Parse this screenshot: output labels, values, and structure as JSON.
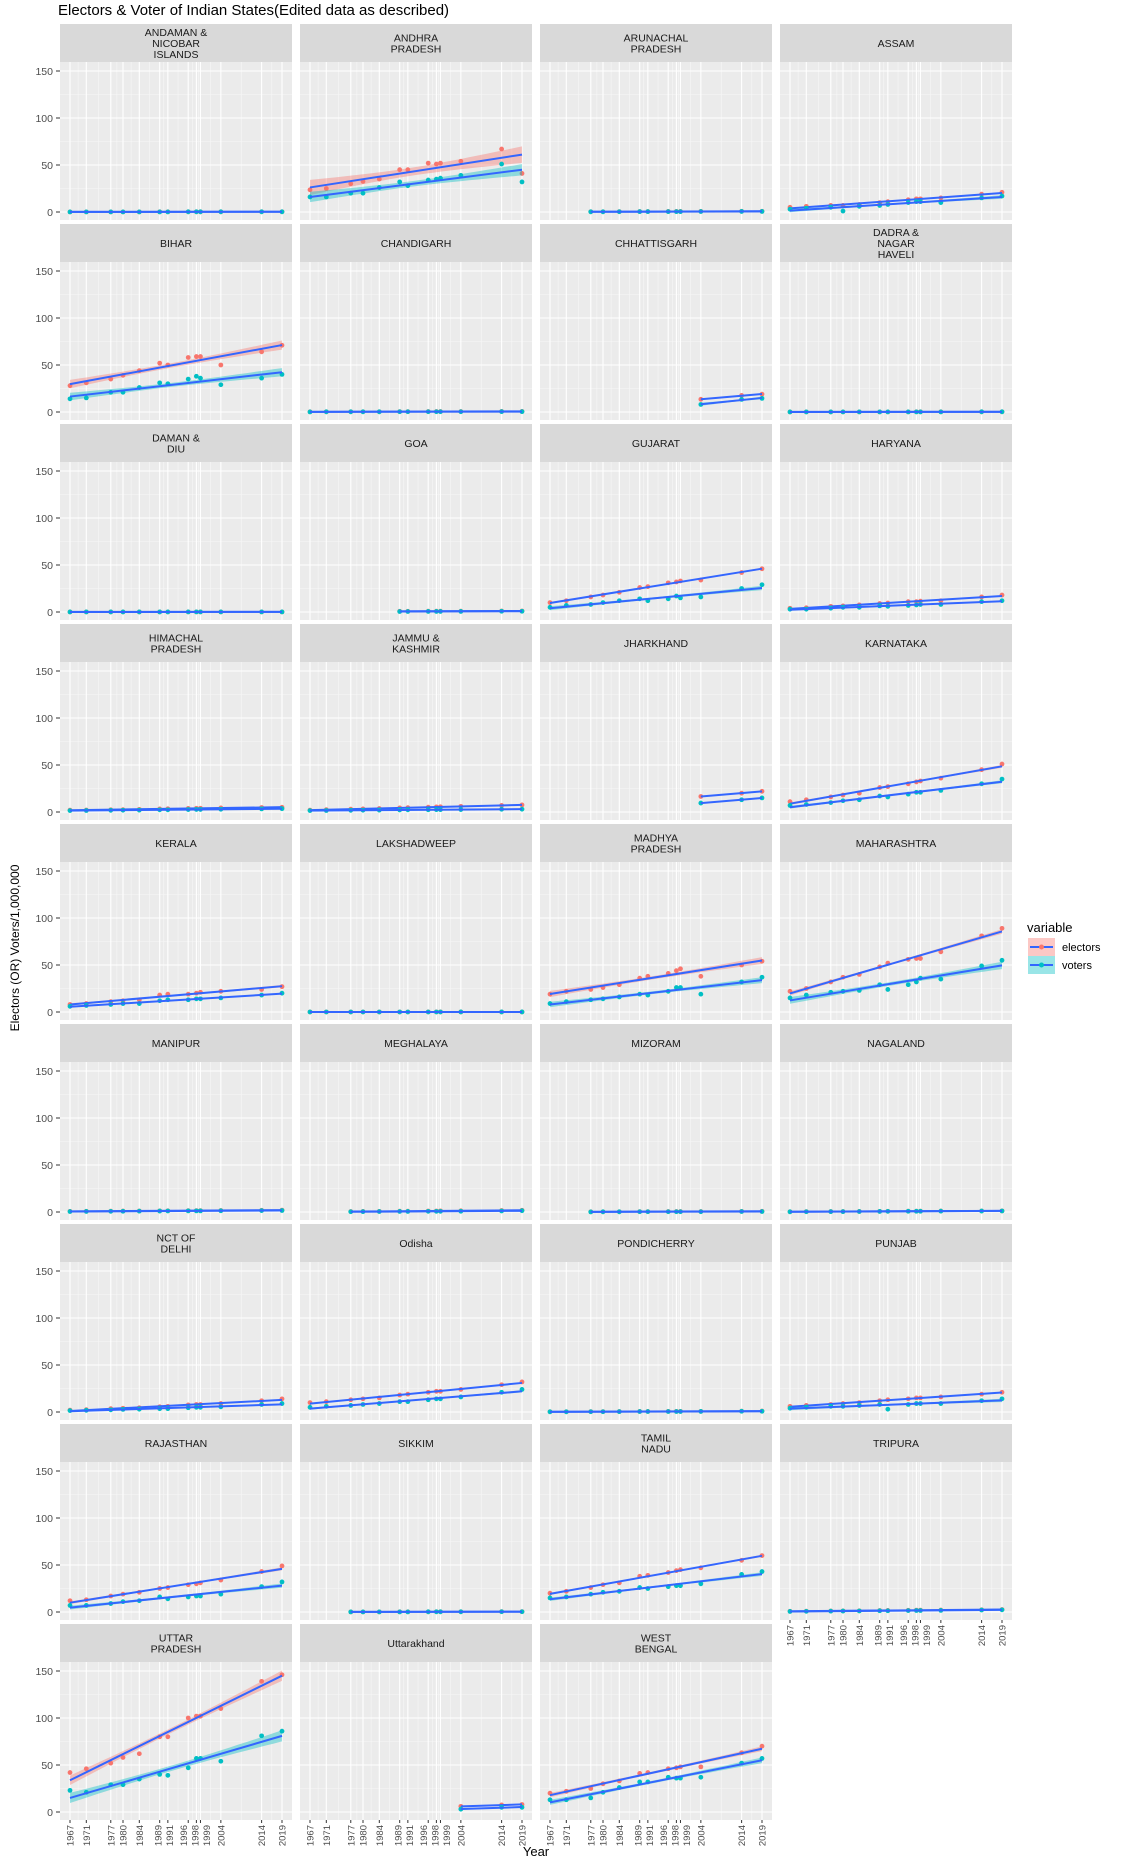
{
  "chart_data": {
    "type": "scatter",
    "title": "Electors & Voter of Indian States(Edited data as described)",
    "xlabel": "Year",
    "ylabel": "Electors (OR) Voters/1,000,000",
    "ylim": [
      0,
      150
    ],
    "yticks": [
      "0",
      "50",
      "100",
      "150"
    ],
    "ytick_values": [
      0,
      50,
      100,
      150
    ],
    "grid": true,
    "smooth": "linear fit with confidence ribbon",
    "legend": {
      "title": "variable",
      "placement": "right",
      "entries": [
        "electors",
        "voters"
      ]
    },
    "colors": {
      "electors": "#F8766D",
      "voters": "#00BFC4",
      "fit_line": "#3366FF",
      "panel_bg": "#EBEBEB",
      "strip_bg": "#D9D9D9"
    },
    "years": [
      1967,
      1971,
      1977,
      1980,
      1984,
      1989,
      1991,
      1996,
      1998,
      1999,
      2004,
      2014,
      2019
    ],
    "xticks": [
      "1967",
      "1971",
      "1977",
      "1980",
      "1984",
      "1989",
      "1991",
      "1996",
      "1998",
      "1999",
      "2004",
      "2014",
      "2019"
    ],
    "facets": [
      {
        "label": [
          "ANDAMAN &",
          "NICOBAR",
          "ISLANDS"
        ],
        "electors": [
          0.1,
          0.1,
          0.1,
          0.1,
          0.1,
          0.2,
          0.2,
          0.2,
          0.2,
          0.2,
          0.2,
          0.3,
          0.3
        ],
        "voters": [
          0.1,
          0.1,
          0.1,
          0.1,
          0.1,
          0.1,
          0.1,
          0.2,
          0.2,
          0.2,
          0.2,
          0.2,
          0.2
        ]
      },
      {
        "label": [
          "ANDHRA",
          "PRADESH"
        ],
        "electors": [
          23.6,
          25,
          30,
          32.5,
          35,
          45,
          45,
          52,
          51,
          52,
          54,
          67,
          41
        ],
        "voters": [
          16,
          16,
          20,
          20,
          26,
          32,
          28,
          34,
          35,
          36,
          39,
          51,
          32
        ]
      },
      {
        "label": [
          "ARUNACHAL",
          "PRADESH"
        ],
        "electors": [
          null,
          null,
          0.3,
          0.3,
          0.4,
          0.5,
          0.5,
          0.6,
          0.6,
          0.6,
          0.7,
          0.8,
          0.8
        ],
        "voters": [
          null,
          null,
          0.2,
          0.2,
          0.3,
          0.4,
          0.4,
          0.4,
          0.4,
          0.4,
          0.5,
          0.6,
          0.6
        ]
      },
      {
        "label": [
          "ASSAM"
        ],
        "electors": [
          5,
          6,
          7,
          7,
          8,
          10,
          11,
          13,
          14,
          14,
          15,
          19,
          21
        ],
        "voters": [
          3,
          4,
          5,
          1,
          6,
          7,
          8,
          10,
          11,
          11,
          10,
          15,
          17
        ]
      },
      {
        "label": [
          "BIHAR"
        ],
        "electors": [
          28,
          31,
          35,
          39,
          44,
          52,
          50,
          58,
          59,
          59,
          50,
          64,
          71
        ],
        "voters": [
          14,
          15,
          21,
          21,
          26,
          31,
          30,
          35,
          38,
          36,
          29,
          36,
          40
        ]
      },
      {
        "label": [
          "CHANDIGARH"
        ],
        "electors": [
          0.2,
          0.2,
          0.3,
          0.3,
          0.3,
          0.4,
          0.4,
          0.5,
          0.5,
          0.5,
          0.5,
          0.6,
          0.6
        ],
        "voters": [
          0.1,
          0.2,
          0.2,
          0.2,
          0.2,
          0.3,
          0.3,
          0.3,
          0.3,
          0.3,
          0.3,
          0.4,
          0.4
        ]
      },
      {
        "label": [
          "CHHATTISGARH"
        ],
        "electors": [
          null,
          null,
          null,
          null,
          null,
          null,
          null,
          null,
          null,
          null,
          13.5,
          17.6,
          19
        ],
        "voters": [
          null,
          null,
          null,
          null,
          null,
          null,
          null,
          null,
          null,
          null,
          8,
          13.4,
          14.5
        ]
      },
      {
        "label": [
          "DADRA &",
          "NAGAR",
          "HAVELI"
        ],
        "electors": [
          0.1,
          0.1,
          0.1,
          0.1,
          0.1,
          0.1,
          0.1,
          0.1,
          0.2,
          0.2,
          0.2,
          0.2,
          0.25
        ],
        "voters": [
          0.05,
          0.05,
          0.05,
          0.1,
          0.1,
          0.1,
          0.1,
          0.1,
          0.1,
          0.1,
          0.1,
          0.2,
          0.2
        ]
      },
      {
        "label": [
          "DAMAN &",
          "DIU"
        ],
        "electors": [
          0.1,
          0.1,
          0.1,
          0.1,
          0.1,
          0.1,
          0.1,
          0.1,
          0.1,
          0.1,
          0.1,
          0.1,
          0.1
        ],
        "voters": [
          0.05,
          0.05,
          0.05,
          0.05,
          0.05,
          0.05,
          0.05,
          0.1,
          0.1,
          0.1,
          0.1,
          0.1,
          0.1
        ]
      },
      {
        "label": [
          "GOA"
        ],
        "electors": [
          null,
          null,
          null,
          null,
          null,
          0.8,
          0.8,
          0.9,
          0.9,
          0.9,
          0.9,
          1.1,
          1.1
        ],
        "voters": [
          null,
          null,
          null,
          null,
          null,
          0.5,
          0.5,
          0.6,
          0.6,
          0.6,
          0.6,
          0.8,
          0.8
        ]
      },
      {
        "label": [
          "GUJARAT"
        ],
        "electors": [
          10,
          12,
          16,
          18,
          21,
          26,
          27,
          31,
          32,
          33,
          34,
          42,
          46
        ],
        "voters": [
          5,
          7,
          8,
          10,
          12,
          14,
          12,
          14,
          17,
          15,
          16,
          25,
          29
        ]
      },
      {
        "label": [
          "HARYANA"
        ],
        "electors": [
          4,
          4.5,
          6,
          6.5,
          7.5,
          9,
          9.5,
          11,
          11,
          11.5,
          12,
          16,
          18
        ],
        "voters": [
          3,
          3,
          4,
          5,
          5,
          6.5,
          6,
          7,
          7.5,
          8,
          8,
          11,
          12
        ]
      },
      {
        "label": [
          "HIMACHAL",
          "PRADESH"
        ],
        "electors": [
          2,
          2.1,
          2.4,
          2.5,
          2.8,
          3.3,
          3.4,
          3.8,
          3.9,
          4,
          4.3,
          4.8,
          5
        ],
        "voters": [
          1.5,
          1.6,
          1.8,
          1.9,
          2,
          2.3,
          2.3,
          2.6,
          2.7,
          2.7,
          2.9,
          3.3,
          3.5
        ]
      },
      {
        "label": [
          "JAMMU &",
          "KASHMIR"
        ],
        "electors": [
          2,
          2.5,
          3,
          3.3,
          3.7,
          4.3,
          4.6,
          5.1,
          5.4,
          5.5,
          6,
          7,
          7.5
        ],
        "voters": [
          1.5,
          1.6,
          1.8,
          1.9,
          2,
          2.2,
          2.3,
          2.4,
          2.5,
          2.5,
          2.6,
          2.9,
          3
        ]
      },
      {
        "label": [
          "JHARKHAND"
        ],
        "electors": [
          null,
          null,
          null,
          null,
          null,
          null,
          null,
          null,
          null,
          null,
          16.5,
          20,
          22
        ],
        "voters": [
          null,
          null,
          null,
          null,
          null,
          null,
          null,
          null,
          null,
          null,
          9.5,
          13,
          15
        ]
      },
      {
        "label": [
          "KARNATAKA"
        ],
        "electors": [
          11,
          13,
          16,
          18,
          20,
          26,
          27,
          30,
          32,
          33,
          36,
          45,
          51
        ],
        "voters": [
          7,
          8,
          10,
          12,
          13,
          17,
          16,
          19,
          21,
          21,
          23,
          30,
          35
        ]
      },
      {
        "label": [
          "KERALA"
        ],
        "electors": [
          8,
          9,
          11,
          12,
          13,
          18,
          19,
          19,
          20,
          21,
          22,
          24,
          27
        ],
        "voters": [
          6,
          7,
          8,
          9,
          9,
          12,
          13,
          13,
          14,
          14,
          15,
          18,
          20
        ]
      },
      {
        "label": [
          "LAKSHADWEEP"
        ],
        "electors": [
          0.02,
          0.02,
          0.02,
          0.03,
          0.03,
          0.03,
          0.03,
          0.04,
          0.04,
          0.04,
          0.04,
          0.05,
          0.05
        ],
        "voters": [
          0.02,
          0.02,
          0.02,
          0.02,
          0.02,
          0.03,
          0.03,
          0.03,
          0.03,
          0.03,
          0.04,
          0.04,
          0.04
        ]
      },
      {
        "label": [
          "MADHYA",
          "PRADESH"
        ],
        "electors": [
          19,
          22,
          24,
          26,
          29,
          36,
          38,
          41,
          44,
          46,
          38,
          50,
          54
        ],
        "voters": [
          9,
          11,
          13,
          14,
          16,
          19,
          18,
          22,
          26,
          26,
          19,
          32,
          37
        ]
      },
      {
        "label": [
          "MAHARASHTRA"
        ],
        "electors": [
          22,
          25,
          32,
          37,
          40,
          48,
          52,
          56,
          57,
          57,
          64,
          81,
          89
        ],
        "voters": [
          15,
          18,
          21,
          22,
          23,
          29,
          24,
          29,
          32,
          36,
          35,
          49,
          55
        ]
      },
      {
        "label": [
          "MANIPUR"
        ],
        "electors": [
          0.7,
          0.8,
          0.9,
          1,
          1.1,
          1.2,
          1.3,
          1.4,
          1.5,
          1.5,
          1.6,
          1.8,
          2
        ],
        "voters": [
          0.5,
          0.6,
          0.7,
          0.8,
          0.9,
          1,
          1.1,
          1.2,
          1.2,
          1.2,
          1.3,
          1.5,
          1.6
        ]
      },
      {
        "label": [
          "MEGHALAYA"
        ],
        "electors": [
          null,
          null,
          0.5,
          0.6,
          0.7,
          0.9,
          0.9,
          1.1,
          1.1,
          1.2,
          1.3,
          1.6,
          1.9
        ],
        "voters": [
          null,
          null,
          0.3,
          0.4,
          0.5,
          0.6,
          0.6,
          0.7,
          0.7,
          0.7,
          0.8,
          1.1,
          1.4
        ]
      },
      {
        "label": [
          "MIZORAM"
        ],
        "electors": [
          null,
          null,
          0.2,
          0.2,
          0.3,
          0.4,
          0.4,
          0.5,
          0.5,
          0.5,
          0.5,
          0.7,
          0.8
        ],
        "voters": [
          null,
          null,
          0.1,
          0.2,
          0.2,
          0.3,
          0.3,
          0.3,
          0.3,
          0.3,
          0.3,
          0.5,
          0.5
        ]
      },
      {
        "label": [
          "NAGALAND"
        ],
        "electors": [
          0.3,
          0.4,
          0.5,
          0.5,
          0.6,
          0.7,
          0.8,
          0.9,
          0.9,
          0.9,
          1,
          1.1,
          1.2
        ],
        "voters": [
          0.2,
          0.3,
          0.4,
          0.4,
          0.5,
          0.6,
          0.7,
          0.8,
          0.8,
          0.8,
          0.9,
          1,
          1.1
        ]
      },
      {
        "label": [
          "NCT OF",
          "DELHI"
        ],
        "electors": [
          2,
          2.5,
          3.5,
          4,
          4.5,
          5.5,
          6,
          7.5,
          8,
          8,
          9,
          12,
          14
        ],
        "voters": [
          1.5,
          1.8,
          2.3,
          2.8,
          3,
          3.5,
          3.6,
          4.5,
          5,
          5,
          5.5,
          8,
          9
        ]
      },
      {
        "label": [
          "Odisha"
        ],
        "electors": [
          10,
          11,
          13,
          14,
          15,
          18,
          19,
          21,
          22,
          22,
          24,
          29,
          32
        ],
        "voters": [
          5,
          6,
          7,
          8,
          9,
          11,
          11,
          13,
          14,
          14,
          16,
          21,
          24
        ]
      },
      {
        "label": [
          "PONDICHERRY"
        ],
        "electors": [
          0.3,
          0.3,
          0.4,
          0.4,
          0.5,
          0.6,
          0.6,
          0.7,
          0.7,
          0.7,
          0.7,
          0.9,
          1
        ],
        "voters": [
          0.2,
          0.2,
          0.3,
          0.3,
          0.4,
          0.5,
          0.5,
          0.5,
          0.5,
          0.5,
          0.6,
          0.8,
          0.8
        ]
      },
      {
        "label": [
          "PUNJAB"
        ],
        "electors": [
          6,
          7,
          8,
          9,
          10,
          12,
          13,
          14,
          15,
          15,
          16,
          19,
          21
        ],
        "voters": [
          4,
          5,
          6,
          6,
          7,
          8,
          3,
          8,
          9,
          9,
          9,
          12,
          14
        ]
      },
      {
        "label": [
          "RAJASTHAN"
        ],
        "electors": [
          12,
          13,
          17,
          19,
          21,
          25,
          26,
          29,
          30,
          31,
          34,
          43,
          49
        ],
        "voters": [
          7,
          7,
          9,
          11,
          12,
          16,
          14,
          16,
          17,
          17,
          19,
          27,
          32
        ]
      },
      {
        "label": [
          "SIKKIM"
        ],
        "electors": [
          null,
          null,
          0.1,
          0.1,
          0.1,
          0.2,
          0.2,
          0.2,
          0.3,
          0.3,
          0.3,
          0.4,
          0.4
        ],
        "voters": [
          null,
          null,
          0.1,
          0.1,
          0.1,
          0.1,
          0.1,
          0.2,
          0.2,
          0.2,
          0.2,
          0.3,
          0.3
        ]
      },
      {
        "label": [
          "TAMIL",
          "NADU"
        ],
        "electors": [
          20,
          22,
          26,
          29,
          31,
          38,
          39,
          42,
          44,
          45,
          47,
          55,
          60
        ],
        "voters": [
          15,
          16,
          19,
          21,
          22,
          26,
          25,
          27,
          28,
          28,
          30,
          40,
          43
        ]
      },
      {
        "label": [
          "TRIPURA"
        ],
        "electors": [
          0.8,
          0.9,
          1.1,
          1.2,
          1.3,
          1.6,
          1.7,
          1.9,
          2,
          2,
          2.1,
          2.4,
          2.6
        ],
        "voters": [
          0.6,
          0.7,
          0.9,
          1,
          1.1,
          1.3,
          1.3,
          1.5,
          1.6,
          1.6,
          1.7,
          2.1,
          2.3
        ]
      },
      {
        "label": [
          "UTTAR",
          "PRADESH"
        ],
        "electors": [
          42,
          46,
          52,
          58,
          62,
          80,
          80,
          100,
          102,
          102,
          110,
          139,
          146
        ],
        "voters": [
          23,
          21,
          29,
          29,
          35,
          40,
          39,
          47,
          57,
          57,
          54,
          81,
          86
        ]
      },
      {
        "label": [
          "Uttarakhand"
        ],
        "electors": [
          null,
          null,
          null,
          null,
          null,
          null,
          null,
          null,
          null,
          null,
          6,
          7.5,
          8
        ],
        "voters": [
          null,
          null,
          null,
          null,
          null,
          null,
          null,
          null,
          null,
          null,
          3,
          5,
          5
        ]
      },
      {
        "label": [
          "WEST",
          "BENGAL"
        ],
        "electors": [
          20,
          22,
          25,
          30,
          33,
          41,
          42,
          46,
          47,
          48,
          48,
          63,
          70
        ],
        "voters": [
          13,
          13,
          15,
          21,
          26,
          32,
          32,
          37,
          36,
          36,
          37,
          52,
          57
        ]
      }
    ]
  }
}
